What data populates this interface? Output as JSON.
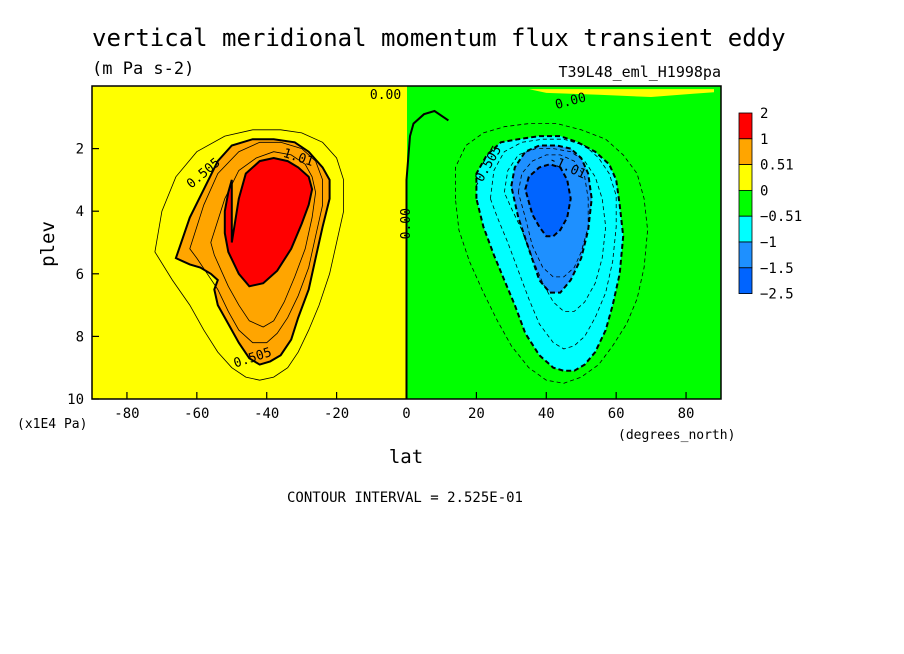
{
  "chart_data": {
    "type": "heatmap",
    "title": "vertical meridional momentum flux transient eddy",
    "units": "(m Pa s-2)",
    "dataset": "T39L48_eml_H1998pa",
    "xlabel": "lat",
    "x_units": "(degrees_north)",
    "ylabel": "plev",
    "y_units": "(x1E4 Pa)",
    "xlim": [
      -90,
      90
    ],
    "ylim": [
      10,
      0
    ],
    "x_ticks": [
      "-80",
      "-60",
      "-40",
      "-20",
      "0",
      "20",
      "40",
      "60",
      "80"
    ],
    "y_ticks": [
      "2",
      "4",
      "6",
      "8",
      "10"
    ],
    "footer": "CONTOUR INTERVAL = 2.525E-01",
    "colorbar": {
      "labels": [
        "2",
        "1",
        "0.51",
        "0",
        "−0.51",
        "−1",
        "−1.5",
        "−2.5"
      ],
      "colors": [
        "#ff0000",
        "#ffa500",
        "#ffff00",
        "#00ff00",
        "#00ffff",
        "#1e90ff",
        "#0064ff"
      ]
    },
    "contour_labels": [
      {
        "text": "0.505",
        "lon": -58,
        "p": 2.8,
        "rot": -40
      },
      {
        "text": "1.01",
        "lon": -31,
        "p": 2.3,
        "rot": 18
      },
      {
        "text": "0.505",
        "lon": -44,
        "p": 8.7,
        "rot": -18
      },
      {
        "text": "0.00",
        "lon": 0,
        "p": 4.4,
        "rot": -90
      },
      {
        "text": "0.00",
        "lon": -6,
        "p": 0.3,
        "rot": 0
      },
      {
        "text": "0.00",
        "lon": 47,
        "p": 0.5,
        "rot": -15
      },
      {
        "text": "-0.505",
        "lon": 23,
        "p": 2.6,
        "rot": -60
      },
      {
        "text": "-1.01",
        "lon": 46,
        "p": 2.6,
        "rot": 25
      }
    ],
    "regions": [
      {
        "level": "0.51 to 1",
        "color": "#ffa500",
        "lon": [
          -66,
          -62,
          -58,
          -54,
          -50,
          -44,
          -38,
          -32,
          -28,
          -24,
          -22,
          -22,
          -24,
          -26,
          -28,
          -31,
          -33,
          -36,
          -39,
          -42,
          -45,
          -48,
          -51,
          -54,
          -55,
          -54,
          -56,
          -59,
          -62,
          -64,
          -66
        ],
        "p": [
          5.5,
          4.2,
          3.3,
          2.4,
          1.9,
          1.7,
          1.7,
          1.8,
          2.1,
          2.6,
          3.0,
          3.6,
          4.5,
          5.5,
          6.5,
          7.4,
          8.1,
          8.6,
          8.8,
          8.9,
          8.7,
          8.2,
          7.6,
          7.0,
          6.5,
          6.2,
          6.0,
          5.8,
          5.7,
          5.6,
          5.5
        ]
      },
      {
        "level": "1 to 2",
        "color": "#ff0000",
        "lon": [
          -50,
          -48,
          -46,
          -42,
          -38,
          -34,
          -31,
          -28,
          -27,
          -28,
          -30,
          -33,
          -37,
          -41,
          -45,
          -48,
          -51,
          -52,
          -52,
          -51,
          -50
        ],
        "p": [
          5.0,
          3.6,
          2.8,
          2.4,
          2.3,
          2.4,
          2.6,
          2.9,
          3.3,
          3.8,
          4.4,
          5.2,
          5.9,
          6.3,
          6.4,
          6.0,
          5.3,
          4.7,
          4.0,
          3.4,
          3.0
        ]
      },
      {
        "level": "-1 to -0.51",
        "color": "#00ffff",
        "lon": [
          20,
          20,
          23,
          27,
          32,
          38,
          44,
          49,
          54,
          58,
          60,
          61,
          62,
          61,
          59,
          57,
          54,
          51,
          48,
          45,
          42,
          38,
          34,
          31,
          28,
          25,
          22,
          20
        ],
        "p": [
          3.6,
          2.8,
          2.2,
          1.8,
          1.7,
          1.6,
          1.6,
          1.8,
          2.1,
          2.5,
          3.0,
          3.8,
          4.8,
          6.0,
          7.0,
          7.8,
          8.5,
          8.9,
          9.1,
          9.1,
          9.0,
          8.6,
          7.9,
          7.0,
          6.2,
          5.4,
          4.5,
          3.6
        ]
      },
      {
        "level": "-1.5 to -1",
        "color": "#1e90ff",
        "lon": [
          30,
          31,
          34,
          38,
          43,
          47,
          50,
          52,
          53,
          52,
          50,
          47,
          44,
          41,
          38,
          35,
          32,
          30
        ],
        "p": [
          3.2,
          2.6,
          2.1,
          1.9,
          1.9,
          2.0,
          2.3,
          2.8,
          3.6,
          4.6,
          5.5,
          6.2,
          6.6,
          6.6,
          6.2,
          5.2,
          4.2,
          3.2
        ]
      },
      {
        "level": "-2.5 to -1.5",
        "color": "#0064ff",
        "lon": [
          34,
          35,
          38,
          41,
          44,
          46,
          47,
          46,
          44,
          42,
          40,
          38,
          36,
          35,
          34
        ],
        "p": [
          3.3,
          2.9,
          2.6,
          2.5,
          2.6,
          3.0,
          3.6,
          4.2,
          4.6,
          4.8,
          4.8,
          4.5,
          4.1,
          3.7,
          3.3
        ]
      },
      {
        "level": "0 to 0.51 (upper strip)",
        "color": "#ffff00",
        "lon": [
          40,
          55,
          70,
          82,
          88,
          88,
          75,
          60,
          45,
          35
        ],
        "p": [
          0.22,
          0.28,
          0.35,
          0.25,
          0.2,
          0.1,
          0.1,
          0.1,
          0.1,
          0.1
        ]
      }
    ],
    "zero_line": {
      "lon": [
        0,
        0,
        0,
        0,
        1,
        2,
        5,
        8,
        12
      ],
      "p": [
        10,
        7,
        5,
        3,
        1.6,
        1.2,
        0.9,
        0.8,
        1.1
      ]
    },
    "thin_contours": [
      {
        "sign": "positive",
        "lon": [
          -72,
          -70,
          -66,
          -60,
          -52,
          -44,
          -36,
          -30,
          -24,
          -20,
          -18,
          -18,
          -20,
          -22,
          -25,
          -28,
          -31,
          -34,
          -38,
          -42,
          -46,
          -50,
          -54,
          -58,
          -62,
          -67,
          -72
        ],
        "p": [
          5.3,
          4.0,
          2.9,
          2.1,
          1.6,
          1.4,
          1.4,
          1.5,
          1.8,
          2.3,
          3.0,
          4.0,
          5.0,
          6.0,
          7.0,
          7.8,
          8.5,
          9.0,
          9.3,
          9.4,
          9.3,
          9.0,
          8.5,
          7.8,
          7.0,
          6.2,
          5.3
        ]
      },
      {
        "sign": "positive",
        "lon": [
          -62,
          -58,
          -54,
          -48,
          -42,
          -36,
          -30,
          -26,
          -24,
          -24,
          -26,
          -28,
          -31,
          -34,
          -37,
          -40,
          -44,
          -48,
          -51,
          -54,
          -57,
          -60,
          -62
        ],
        "p": [
          5.2,
          3.8,
          2.8,
          2.1,
          1.8,
          1.8,
          2.0,
          2.4,
          3.0,
          3.8,
          4.8,
          5.8,
          6.7,
          7.4,
          7.9,
          8.2,
          8.2,
          7.8,
          7.2,
          6.5,
          6.0,
          5.5,
          5.2
        ]
      },
      {
        "sign": "positive",
        "lon": [
          -56,
          -52,
          -48,
          -43,
          -38,
          -33,
          -29,
          -27,
          -26,
          -27,
          -29,
          -32,
          -35,
          -38,
          -41,
          -45,
          -48,
          -51,
          -53,
          -55,
          -56
        ],
        "p": [
          5.0,
          3.6,
          2.7,
          2.3,
          2.1,
          2.2,
          2.5,
          2.9,
          3.4,
          4.2,
          5.2,
          6.1,
          6.9,
          7.5,
          7.7,
          7.5,
          7.0,
          6.4,
          5.9,
          5.4,
          5.0
        ]
      },
      {
        "sign": "negative",
        "lon": [
          14,
          14,
          17,
          22,
          28,
          35,
          43,
          50,
          57,
          62,
          66,
          68,
          69,
          68,
          66,
          63,
          59,
          55,
          50,
          45,
          40,
          35,
          30,
          26,
          22,
          18,
          15,
          14
        ],
        "p": [
          3.6,
          2.6,
          1.9,
          1.5,
          1.3,
          1.2,
          1.2,
          1.4,
          1.7,
          2.2,
          2.8,
          3.6,
          4.6,
          5.8,
          6.8,
          7.6,
          8.3,
          8.9,
          9.3,
          9.5,
          9.4,
          9.0,
          8.3,
          7.5,
          6.6,
          5.6,
          4.6,
          3.6
        ]
      },
      {
        "sign": "negative",
        "lon": [
          24,
          25,
          28,
          33,
          39,
          45,
          51,
          55,
          58,
          60,
          60,
          59,
          57,
          54,
          51,
          48,
          45,
          42,
          38,
          35,
          32,
          29,
          26,
          24
        ],
        "p": [
          3.6,
          2.7,
          2.1,
          1.8,
          1.7,
          1.7,
          1.9,
          2.3,
          2.8,
          3.5,
          4.5,
          5.6,
          6.6,
          7.4,
          8.0,
          8.3,
          8.4,
          8.2,
          7.6,
          6.8,
          5.9,
          5.0,
          4.2,
          3.6
        ]
      },
      {
        "sign": "negative",
        "lon": [
          28,
          29,
          32,
          37,
          42,
          47,
          51,
          54,
          56,
          57,
          56,
          54,
          51,
          48,
          45,
          42,
          39,
          36,
          33,
          30,
          28
        ],
        "p": [
          3.4,
          2.7,
          2.2,
          2.0,
          2.0,
          2.1,
          2.4,
          2.9,
          3.6,
          4.5,
          5.5,
          6.3,
          6.9,
          7.2,
          7.2,
          6.9,
          6.3,
          5.5,
          4.6,
          3.9,
          3.4
        ]
      },
      {
        "sign": "negative",
        "lon": [
          32,
          33,
          36,
          40,
          44,
          48,
          51,
          52,
          52,
          50,
          48,
          45,
          42,
          39,
          36,
          34,
          32
        ],
        "p": [
          3.4,
          2.8,
          2.4,
          2.2,
          2.2,
          2.4,
          2.9,
          3.6,
          4.5,
          5.3,
          5.8,
          6.1,
          6.1,
          5.8,
          5.1,
          4.2,
          3.4
        ]
      }
    ]
  }
}
